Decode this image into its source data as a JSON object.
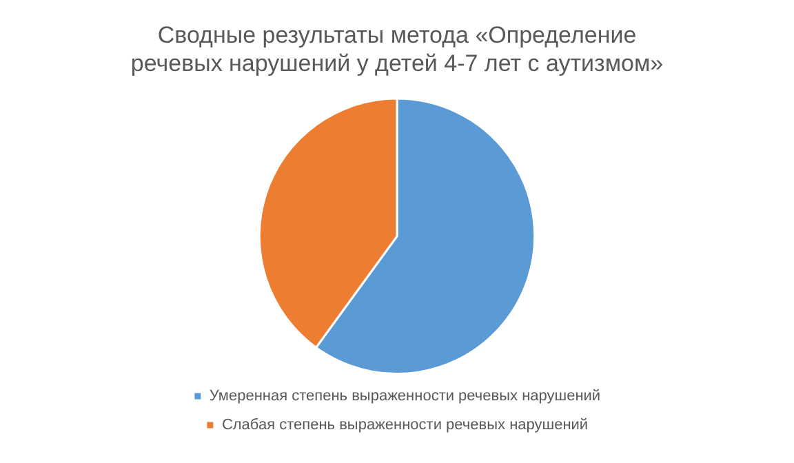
{
  "chart_data": {
    "type": "pie",
    "title": "Сводные результаты метода «Определение речевых нарушений у детей 4-7 лет с аутизмом»",
    "categories": [
      "Умеренная степень выраженности речевых нарушений",
      "Слабая степень выраженности речевых нарушений"
    ],
    "values": [
      60,
      40
    ],
    "colors": [
      "#5b9bd5",
      "#ed7d31"
    ],
    "legend": "bottom"
  }
}
